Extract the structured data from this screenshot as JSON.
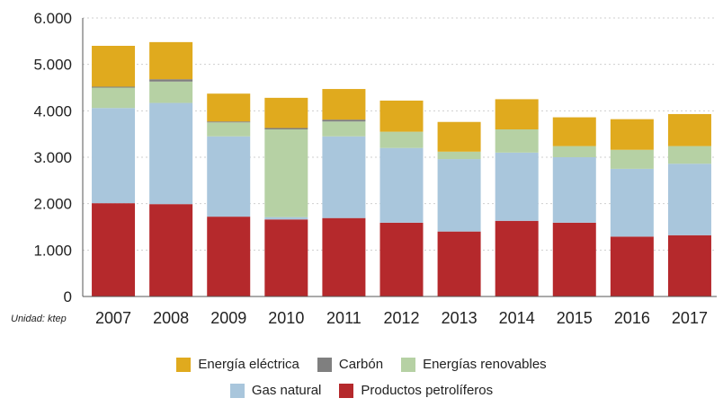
{
  "chart_data": {
    "type": "bar",
    "stacked": true,
    "title": "",
    "xlabel": "",
    "ylabel": "",
    "unit_label": "Unidad: ktep",
    "ylim": [
      0,
      6000
    ],
    "yticks": [
      0,
      1000,
      2000,
      3000,
      4000,
      5000,
      6000
    ],
    "ytick_labels": [
      "0",
      "1.000",
      "2.000",
      "3.000",
      "4.000",
      "5.000",
      "6.000"
    ],
    "categories": [
      "2007",
      "2008",
      "2009",
      "2010",
      "2011",
      "2012",
      "2013",
      "2014",
      "2015",
      "2016",
      "2017"
    ],
    "series": [
      {
        "name": "Productos petrolíferos",
        "color": "#b5292c",
        "values": [
          2010,
          1990,
          1720,
          1660,
          1690,
          1590,
          1400,
          1630,
          1590,
          1290,
          1320
        ]
      },
      {
        "name": "Gas natural",
        "color": "#a9c6dc",
        "values": [
          2050,
          2180,
          1730,
          50,
          1760,
          1610,
          1560,
          1470,
          1410,
          1460,
          1540
        ]
      },
      {
        "name": "Energías renovables",
        "color": "#b6d1a4",
        "values": [
          440,
          460,
          300,
          1890,
          320,
          350,
          160,
          500,
          240,
          410,
          380
        ]
      },
      {
        "name": "Carbón",
        "color": "#7f7f7f",
        "values": [
          20,
          50,
          20,
          30,
          40,
          0,
          0,
          0,
          0,
          0,
          0
        ]
      },
      {
        "name": "Energía eléctrica",
        "color": "#e0aa1e",
        "values": [
          880,
          800,
          600,
          650,
          660,
          670,
          640,
          650,
          620,
          660,
          690
        ]
      }
    ],
    "legend": {
      "placement": "bottom",
      "row1": [
        "Energía eléctrica",
        "Carbón",
        "Energías renovables"
      ],
      "row2": [
        "Gas natural",
        "Productos petrolíferos"
      ]
    }
  }
}
